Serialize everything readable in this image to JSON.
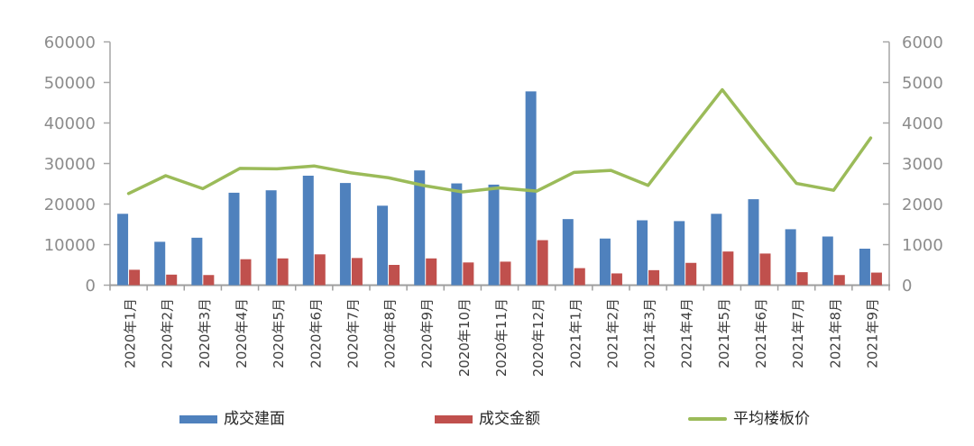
{
  "chart_data": {
    "type": "combo",
    "categories": [
      "2020年1月",
      "2020年2月",
      "2020年3月",
      "2020年4月",
      "2020年5月",
      "2020年6月",
      "2020年7月",
      "2020年8月",
      "2020年9月",
      "2020年10月",
      "2020年11月",
      "2020年12月",
      "2021年1月",
      "2021年2月",
      "2021年3月",
      "2021年4月",
      "2021年5月",
      "2021年6月",
      "2021年7月",
      "2021年8月",
      "2021年9月"
    ],
    "series": [
      {
        "name": "成交建面",
        "type": "bar",
        "axis": "left",
        "color": "#4F81BD",
        "values": [
          17600,
          10700,
          11700,
          22800,
          23400,
          27000,
          25200,
          19600,
          28300,
          25100,
          24800,
          47800,
          16300,
          11500,
          16000,
          15800,
          17600,
          21200,
          13800,
          12000,
          9000
        ]
      },
      {
        "name": "成交金额",
        "type": "bar",
        "axis": "right",
        "color": "#C0504D",
        "values": [
          380,
          260,
          250,
          640,
          660,
          760,
          670,
          500,
          660,
          560,
          580,
          1110,
          420,
          290,
          370,
          550,
          830,
          780,
          320,
          250,
          310
        ]
      },
      {
        "name": "平均楼板价",
        "type": "line",
        "axis": "right",
        "color": "#9BBB59",
        "values": [
          2260,
          2700,
          2380,
          2880,
          2870,
          2940,
          2770,
          2650,
          2450,
          2300,
          2400,
          2320,
          2780,
          2830,
          2460,
          3650,
          4820,
          3650,
          2510,
          2340,
          3630
        ]
      }
    ],
    "left_axis": {
      "min": 0,
      "max": 60000,
      "step": 10000
    },
    "right_axis": {
      "min": 0,
      "max": 6000,
      "step": 1000
    },
    "grid": false,
    "legend_position": "bottom",
    "title": "",
    "xlabel": "",
    "ylabel": "",
    "styles": {
      "axis_line_color": "#a6a6a6",
      "baseline_color": "#9e9e9e",
      "tick_label_color": "#8c8c8c",
      "category_label_color": "#3d3d3d"
    }
  }
}
